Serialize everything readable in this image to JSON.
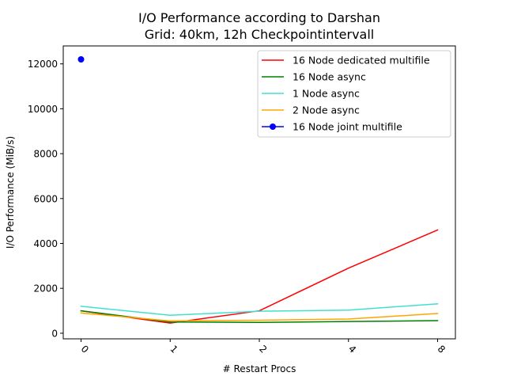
{
  "chart_data": {
    "type": "line",
    "title_line1": "I/O Performance according to Darshan",
    "title_line2": "Grid: 40km, 12h Checkpointintervall",
    "xlabel": "# Restart Procs",
    "ylabel": "I/O Performance (MiB/s)",
    "categories": [
      "0",
      "1",
      "2",
      "4",
      "8"
    ],
    "ylim": [
      -250,
      12800
    ],
    "yticks": [
      0,
      2000,
      4000,
      6000,
      8000,
      10000,
      12000
    ],
    "ytick_labels": [
      "0",
      "2000",
      "4000",
      "6000",
      "8000",
      "10000",
      "12000"
    ],
    "grid": false,
    "legend_position": "upper right",
    "series": [
      {
        "name": "16 Node dedicated multifile",
        "color": "#ff0000",
        "marker": "none",
        "values": [
          1000,
          450,
          1000,
          2900,
          4600
        ]
      },
      {
        "name": "16 Node async",
        "color": "#008000",
        "marker": "none",
        "values": [
          1000,
          500,
          480,
          520,
          560
        ]
      },
      {
        "name": "1 Node async",
        "color": "#40e0d0",
        "marker": "none",
        "values": [
          1200,
          800,
          980,
          1030,
          1310
        ]
      },
      {
        "name": "2 Node async",
        "color": "#ffa500",
        "marker": "none",
        "values": [
          900,
          550,
          580,
          630,
          880
        ]
      },
      {
        "name": "16 Node joint multifile",
        "color": "#0000ff",
        "marker": "circle",
        "values": [
          12200,
          null,
          null,
          null,
          null
        ]
      }
    ]
  }
}
